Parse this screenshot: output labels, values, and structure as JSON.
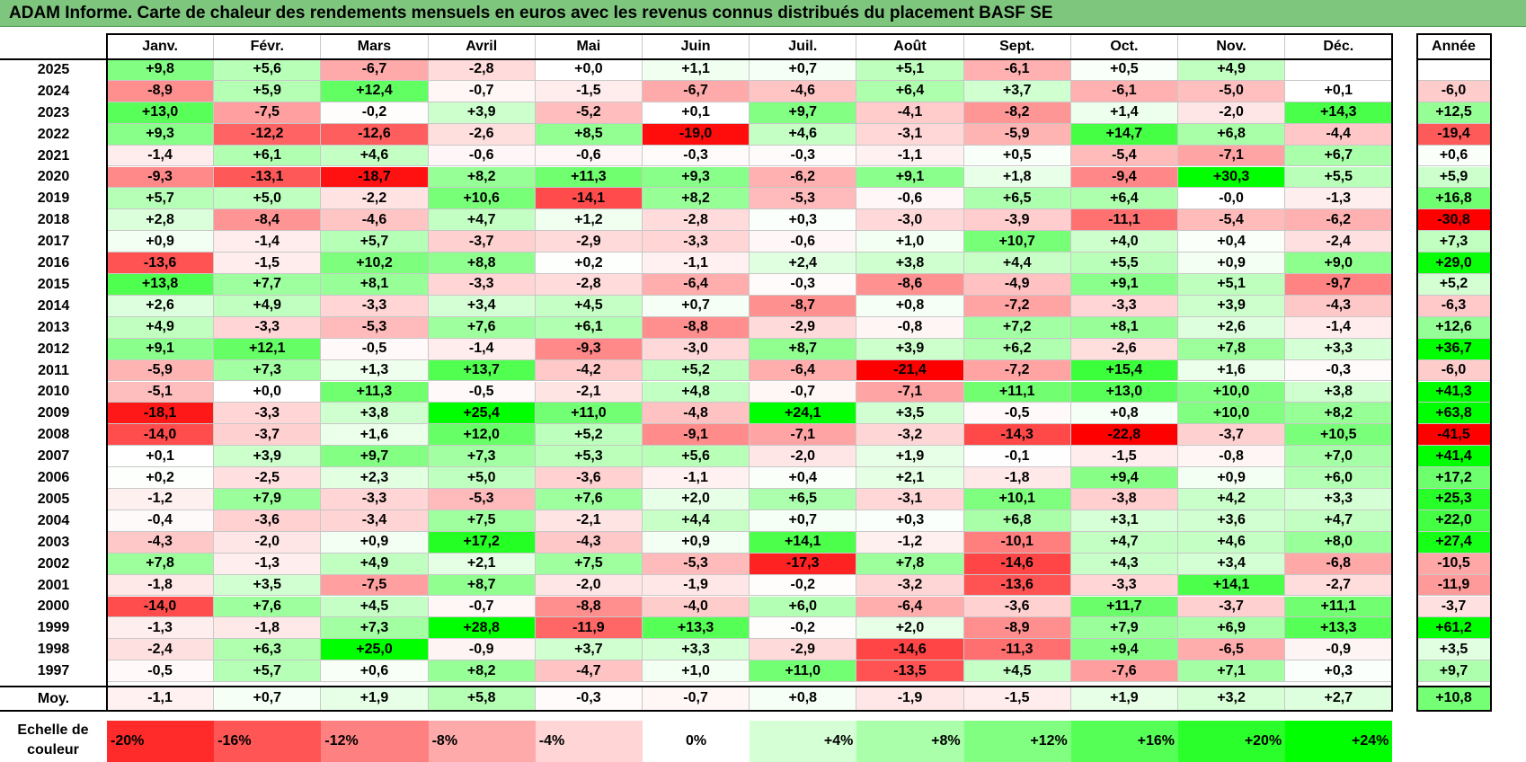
{
  "title": "ADAM Informe. Carte de chaleur des rendements mensuels en euros avec les revenus connus distribués du placement BASF SE",
  "chart_data": {
    "type": "heatmap",
    "title": "ADAM Informe. Carte de chaleur des rendements mensuels en euros avec les revenus connus distribués du placement BASF SE",
    "columns": [
      "Janv.",
      "Févr.",
      "Mars",
      "Avril",
      "Mai",
      "Juin",
      "Juil.",
      "Août",
      "Sept.",
      "Oct.",
      "Nov.",
      "Déc."
    ],
    "annual_header": "Année",
    "rows": [
      {
        "year": "2025",
        "values": [
          "+9,8",
          "+5,6",
          "-6,7",
          "-2,8",
          "+0,0",
          "+1,1",
          "+0,7",
          "+5,1",
          "-6,1",
          "+0,5",
          "+4,9",
          ""
        ],
        "annual": ""
      },
      {
        "year": "2024",
        "values": [
          "-8,9",
          "+5,9",
          "+12,4",
          "-0,7",
          "-1,5",
          "-6,7",
          "-4,6",
          "+6,4",
          "+3,7",
          "-6,1",
          "-5,0",
          "+0,1"
        ],
        "annual": "-6,0"
      },
      {
        "year": "2023",
        "values": [
          "+13,0",
          "-7,5",
          "-0,2",
          "+3,9",
          "-5,2",
          "+0,1",
          "+9,7",
          "-4,1",
          "-8,2",
          "+1,4",
          "-2,0",
          "+14,3"
        ],
        "annual": "+12,5"
      },
      {
        "year": "2022",
        "values": [
          "+9,3",
          "-12,2",
          "-12,6",
          "-2,6",
          "+8,5",
          "-19,0",
          "+4,6",
          "-3,1",
          "-5,9",
          "+14,7",
          "+6,8",
          "-4,4"
        ],
        "annual": "-19,4"
      },
      {
        "year": "2021",
        "values": [
          "-1,4",
          "+6,1",
          "+4,6",
          "-0,6",
          "-0,6",
          "-0,3",
          "-0,3",
          "-1,1",
          "+0,5",
          "-5,4",
          "-7,1",
          "+6,7"
        ],
        "annual": "+0,6"
      },
      {
        "year": "2020",
        "values": [
          "-9,3",
          "-13,1",
          "-18,7",
          "+8,2",
          "+11,3",
          "+9,3",
          "-6,2",
          "+9,1",
          "+1,8",
          "-9,4",
          "+30,3",
          "+5,5"
        ],
        "annual": "+5,9"
      },
      {
        "year": "2019",
        "values": [
          "+5,7",
          "+5,0",
          "-2,2",
          "+10,6",
          "-14,1",
          "+8,2",
          "-5,3",
          "-0,6",
          "+6,5",
          "+6,4",
          "-0,0",
          "-1,3"
        ],
        "annual": "+16,8"
      },
      {
        "year": "2018",
        "values": [
          "+2,8",
          "-8,4",
          "-4,6",
          "+4,7",
          "+1,2",
          "-2,8",
          "+0,3",
          "-3,0",
          "-3,9",
          "-11,1",
          "-5,4",
          "-6,2"
        ],
        "annual": "-30,8"
      },
      {
        "year": "2017",
        "values": [
          "+0,9",
          "-1,4",
          "+5,7",
          "-3,7",
          "-2,9",
          "-3,3",
          "-0,6",
          "+1,0",
          "+10,7",
          "+4,0",
          "+0,4",
          "-2,4"
        ],
        "annual": "+7,3"
      },
      {
        "year": "2016",
        "values": [
          "-13,6",
          "-1,5",
          "+10,2",
          "+8,8",
          "+0,2",
          "-1,1",
          "+2,4",
          "+3,8",
          "+4,4",
          "+5,5",
          "+0,9",
          "+9,0"
        ],
        "annual": "+29,0"
      },
      {
        "year": "2015",
        "values": [
          "+13,8",
          "+7,7",
          "+8,1",
          "-3,3",
          "-2,8",
          "-6,4",
          "-0,3",
          "-8,6",
          "-4,9",
          "+9,1",
          "+5,1",
          "-9,7"
        ],
        "annual": "+5,2"
      },
      {
        "year": "2014",
        "values": [
          "+2,6",
          "+4,9",
          "-3,3",
          "+3,4",
          "+4,5",
          "+0,7",
          "-8,7",
          "+0,8",
          "-7,2",
          "-3,3",
          "+3,9",
          "-4,3"
        ],
        "annual": "-6,3"
      },
      {
        "year": "2013",
        "values": [
          "+4,9",
          "-3,3",
          "-5,3",
          "+7,6",
          "+6,1",
          "-8,8",
          "-2,9",
          "-0,8",
          "+7,2",
          "+8,1",
          "+2,6",
          "-1,4"
        ],
        "annual": "+12,6"
      },
      {
        "year": "2012",
        "values": [
          "+9,1",
          "+12,1",
          "-0,5",
          "-1,4",
          "-9,3",
          "-3,0",
          "+8,7",
          "+3,9",
          "+6,2",
          "-2,6",
          "+7,8",
          "+3,3"
        ],
        "annual": "+36,7"
      },
      {
        "year": "2011",
        "values": [
          "-5,9",
          "+7,3",
          "+1,3",
          "+13,7",
          "-4,2",
          "+5,2",
          "-6,4",
          "-21,4",
          "-7,2",
          "+15,4",
          "+1,6",
          "-0,3"
        ],
        "annual": "-6,0"
      },
      {
        "year": "2010",
        "values": [
          "-5,1",
          "+0,0",
          "+11,3",
          "-0,5",
          "-2,1",
          "+4,8",
          "-0,7",
          "-7,1",
          "+11,1",
          "+13,0",
          "+10,0",
          "+3,8"
        ],
        "annual": "+41,3"
      },
      {
        "year": "2009",
        "values": [
          "-18,1",
          "-3,3",
          "+3,8",
          "+25,4",
          "+11,0",
          "-4,8",
          "+24,1",
          "+3,5",
          "-0,5",
          "+0,8",
          "+10,0",
          "+8,2"
        ],
        "annual": "+63,8"
      },
      {
        "year": "2008",
        "values": [
          "-14,0",
          "-3,7",
          "+1,6",
          "+12,0",
          "+5,2",
          "-9,1",
          "-7,1",
          "-3,2",
          "-14,3",
          "-22,8",
          "-3,7",
          "+10,5"
        ],
        "annual": "-41,5"
      },
      {
        "year": "2007",
        "values": [
          "+0,1",
          "+3,9",
          "+9,7",
          "+7,3",
          "+5,3",
          "+5,6",
          "-2,0",
          "+1,9",
          "-0,1",
          "-1,5",
          "-0,8",
          "+7,0"
        ],
        "annual": "+41,4"
      },
      {
        "year": "2006",
        "values": [
          "+0,2",
          "-2,5",
          "+2,3",
          "+5,0",
          "-3,6",
          "-1,1",
          "+0,4",
          "+2,1",
          "-1,8",
          "+9,4",
          "+0,9",
          "+6,0"
        ],
        "annual": "+17,2"
      },
      {
        "year": "2005",
        "values": [
          "-1,2",
          "+7,9",
          "-3,3",
          "-5,3",
          "+7,6",
          "+2,0",
          "+6,5",
          "-3,1",
          "+10,1",
          "-3,8",
          "+4,2",
          "+3,3"
        ],
        "annual": "+25,3"
      },
      {
        "year": "2004",
        "values": [
          "-0,4",
          "-3,6",
          "-3,4",
          "+7,5",
          "-2,1",
          "+4,4",
          "+0,7",
          "+0,3",
          "+6,8",
          "+3,1",
          "+3,6",
          "+4,7"
        ],
        "annual": "+22,0"
      },
      {
        "year": "2003",
        "values": [
          "-4,3",
          "-2,0",
          "+0,9",
          "+17,2",
          "-4,3",
          "+0,9",
          "+14,1",
          "-1,2",
          "-10,1",
          "+4,7",
          "+4,6",
          "+8,0"
        ],
        "annual": "+27,4"
      },
      {
        "year": "2002",
        "values": [
          "+7,8",
          "-1,3",
          "+4,9",
          "+2,1",
          "+7,5",
          "-5,3",
          "-17,3",
          "+7,8",
          "-14,6",
          "+4,3",
          "+3,4",
          "-6,8"
        ],
        "annual": "-10,5"
      },
      {
        "year": "2001",
        "values": [
          "-1,8",
          "+3,5",
          "-7,5",
          "+8,7",
          "-2,0",
          "-1,9",
          "-0,2",
          "-3,2",
          "-13,6",
          "-3,3",
          "+14,1",
          "-2,7"
        ],
        "annual": "-11,9"
      },
      {
        "year": "2000",
        "values": [
          "-14,0",
          "+7,6",
          "+4,5",
          "-0,7",
          "-8,8",
          "-4,0",
          "+6,0",
          "-6,4",
          "-3,6",
          "+11,7",
          "-3,7",
          "+11,1"
        ],
        "annual": "-3,7"
      },
      {
        "year": "1999",
        "values": [
          "-1,3",
          "-1,8",
          "+7,3",
          "+28,8",
          "-11,9",
          "+13,3",
          "-0,2",
          "+2,0",
          "-8,9",
          "+7,9",
          "+6,9",
          "+13,3"
        ],
        "annual": "+61,2"
      },
      {
        "year": "1998",
        "values": [
          "-2,4",
          "+6,3",
          "+25,0",
          "-0,9",
          "+3,7",
          "+3,3",
          "-2,9",
          "-14,6",
          "-11,3",
          "+9,4",
          "-6,5",
          "-0,9"
        ],
        "annual": "+3,5"
      },
      {
        "year": "1997",
        "values": [
          "-0,5",
          "+5,7",
          "+0,6",
          "+8,2",
          "-4,7",
          "+1,0",
          "+11,0",
          "-13,5",
          "+4,5",
          "-7,6",
          "+7,1",
          "+0,3"
        ],
        "annual": "+9,7"
      }
    ],
    "average": {
      "label": "Moy.",
      "values": [
        "-1,1",
        "+0,7",
        "+1,9",
        "+5,8",
        "-0,3",
        "-0,7",
        "+0,8",
        "-1,9",
        "-1,5",
        "+1,9",
        "+3,2",
        "+2,7"
      ],
      "annual": "+10,8"
    },
    "color_scale": {
      "label_line1": "Echelle de",
      "label_line2": "couleur",
      "steps": [
        "-20%",
        "-16%",
        "-12%",
        "-8%",
        "-4%",
        "0%",
        "+4%",
        "+8%",
        "+12%",
        "+16%",
        "+20%",
        "+24%"
      ]
    },
    "colors": {
      "negative_max": "#ff0000",
      "neutral": "#ffffff",
      "positive_max": "#00ff00",
      "title_bg": "#7ec67e"
    }
  }
}
